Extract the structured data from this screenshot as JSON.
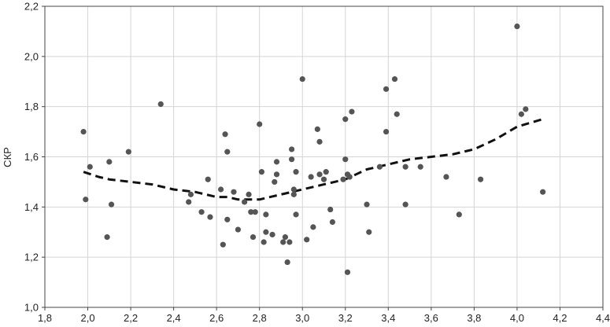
{
  "chart_data": {
    "type": "scatter",
    "title": "",
    "xlabel": "",
    "ylabel": "СКР",
    "xlim": [
      1.8,
      4.4
    ],
    "ylim": [
      1.0,
      2.2
    ],
    "x_ticks": [
      1.8,
      2.0,
      2.2,
      2.4,
      2.6,
      2.8,
      3.0,
      3.2,
      3.4,
      3.6,
      3.8,
      4.0,
      4.2,
      4.4
    ],
    "x_tick_labels": [
      "1,8",
      "2,0",
      "2,2",
      "2,4",
      "2,6",
      "2,8",
      "3,0",
      "3,2",
      "3,4",
      "3,6",
      "3,8",
      "4,0",
      "4,2",
      "4,4"
    ],
    "y_ticks": [
      1.0,
      1.2,
      1.4,
      1.6,
      1.8,
      2.0,
      2.2
    ],
    "y_tick_labels": [
      "1,0",
      "1,2",
      "1,4",
      "1,6",
      "1,8",
      "2,0",
      "2,2"
    ],
    "grid": true,
    "legend": "none",
    "colors": {
      "points": "#555555",
      "trend": "#111111",
      "grid": "#d4d4d4",
      "axis": "#444444"
    },
    "series": [
      {
        "kind": "points",
        "x": [
          1.98,
          1.99,
          2.01,
          2.09,
          2.1,
          2.11,
          2.19,
          2.34,
          2.47,
          2.48,
          2.53,
          2.56,
          2.57,
          2.62,
          2.63,
          2.64,
          2.65,
          2.65,
          2.68,
          2.7,
          2.73,
          2.75,
          2.76,
          2.77,
          2.78,
          2.8,
          2.81,
          2.82,
          2.83,
          2.83,
          2.86,
          2.87,
          2.88,
          2.88,
          2.91,
          2.92,
          2.93,
          2.94,
          2.95,
          2.95,
          2.96,
          2.96,
          2.97,
          2.97,
          3.0,
          3.02,
          3.04,
          3.05,
          3.07,
          3.08,
          3.08,
          3.1,
          3.11,
          3.13,
          3.14,
          3.19,
          3.2,
          3.2,
          3.21,
          3.21,
          3.22,
          3.23,
          3.3,
          3.31,
          3.36,
          3.39,
          3.39,
          3.43,
          3.44,
          3.48,
          3.48,
          3.55,
          3.67,
          3.73,
          3.83,
          4.0,
          4.02,
          4.04,
          4.12
        ],
        "y": [
          1.7,
          1.43,
          1.56,
          1.28,
          1.58,
          1.41,
          1.62,
          1.81,
          1.42,
          1.45,
          1.38,
          1.51,
          1.36,
          1.47,
          1.25,
          1.69,
          1.62,
          1.35,
          1.46,
          1.31,
          1.42,
          1.45,
          1.38,
          1.28,
          1.38,
          1.73,
          1.54,
          1.26,
          1.37,
          1.3,
          1.29,
          1.5,
          1.58,
          1.53,
          1.26,
          1.28,
          1.18,
          1.26,
          1.59,
          1.63,
          1.47,
          1.45,
          1.54,
          1.37,
          1.91,
          1.27,
          1.52,
          1.32,
          1.71,
          1.66,
          1.53,
          1.51,
          1.54,
          1.39,
          1.34,
          1.51,
          1.59,
          1.75,
          1.53,
          1.14,
          1.52,
          1.78,
          1.41,
          1.3,
          1.56,
          1.7,
          1.87,
          1.91,
          1.77,
          1.56,
          1.41,
          1.56,
          1.52,
          1.37,
          1.51,
          2.12,
          1.77,
          1.79,
          1.46
        ]
      },
      {
        "kind": "trend",
        "style": "dashed",
        "x": [
          1.98,
          2.05,
          2.1,
          2.2,
          2.3,
          2.4,
          2.5,
          2.55,
          2.6,
          2.65,
          2.7,
          2.75,
          2.8,
          2.85,
          2.9,
          2.95,
          3.0,
          3.05,
          3.1,
          3.15,
          3.2,
          3.25,
          3.3,
          3.4,
          3.5,
          3.6,
          3.7,
          3.8,
          3.9,
          4.0,
          4.12
        ],
        "y": [
          1.54,
          1.52,
          1.51,
          1.5,
          1.49,
          1.47,
          1.46,
          1.45,
          1.44,
          1.44,
          1.43,
          1.43,
          1.43,
          1.44,
          1.45,
          1.46,
          1.47,
          1.48,
          1.49,
          1.5,
          1.51,
          1.53,
          1.55,
          1.57,
          1.59,
          1.6,
          1.61,
          1.63,
          1.67,
          1.72,
          1.75
        ]
      }
    ]
  }
}
